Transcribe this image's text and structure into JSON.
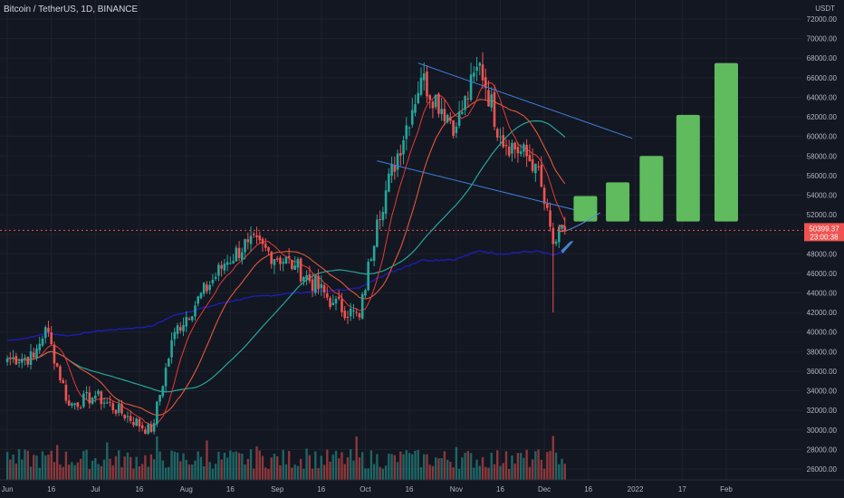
{
  "header": {
    "symbol_info": "Bitcoin / TetherUS, 1D, BINANCE"
  },
  "price_badge": {
    "price": "50399.37",
    "countdown": "23:00:38"
  },
  "chart_data": {
    "type": "candlestick",
    "title": "Bitcoin / TetherUS, 1D, BINANCE",
    "currency_label": "USDT",
    "ylim": [
      25000,
      73000
    ],
    "y_ticks": [
      "26000.00",
      "28000.00",
      "30000.00",
      "32000.00",
      "34000.00",
      "36000.00",
      "38000.00",
      "40000.00",
      "42000.00",
      "44000.00",
      "46000.00",
      "48000.00",
      "50000.00",
      "52000.00",
      "54000.00",
      "56000.00",
      "58000.00",
      "60000.00",
      "62000.00",
      "64000.00",
      "66000.00",
      "68000.00",
      "70000.00",
      "72000.00"
    ],
    "x_ticks": [
      "Jun",
      "16",
      "Jul",
      "16",
      "Aug",
      "16",
      "Sep",
      "16",
      "Oct",
      "16",
      "Nov",
      "16",
      "Dec",
      "16",
      "2022",
      "17",
      "Feb"
    ],
    "close_anchors": [
      {
        "date": "Jun 1",
        "close": 37300
      },
      {
        "date": "Jun 10",
        "close": 37400
      },
      {
        "date": "Jun 14",
        "close": 40500
      },
      {
        "date": "Jun 22",
        "close": 32500
      },
      {
        "date": "Jul 1",
        "close": 33500
      },
      {
        "date": "Jul 20",
        "close": 29800
      },
      {
        "date": "Jul 28",
        "close": 40000
      },
      {
        "date": "Aug 14",
        "close": 47000
      },
      {
        "date": "Aug 22",
        "close": 49200
      },
      {
        "date": "Sep 7",
        "close": 46800
      },
      {
        "date": "Sep 20",
        "close": 43000
      },
      {
        "date": "Sep 29",
        "close": 41500
      },
      {
        "date": "Oct 5",
        "close": 51500
      },
      {
        "date": "Oct 20",
        "close": 66000
      },
      {
        "date": "Nov 1",
        "close": 61000
      },
      {
        "date": "Nov 9",
        "close": 67500
      },
      {
        "date": "Nov 16",
        "close": 60000
      },
      {
        "date": "Nov 28",
        "close": 57200
      },
      {
        "date": "Dec 4",
        "close": 49000
      },
      {
        "date": "Dec 8",
        "close": 50400
      }
    ],
    "wick_low_extreme": {
      "date": "Dec 4",
      "low": 42000
    },
    "projection_bars": [
      {
        "low": 51300,
        "high": 53900
      },
      {
        "low": 51300,
        "high": 55300
      },
      {
        "low": 51300,
        "high": 58000
      },
      {
        "low": 51300,
        "high": 62200
      },
      {
        "low": 51300,
        "high": 67500
      }
    ],
    "last_price": 50399.37,
    "colors": {
      "bull": "#26a69a",
      "bear": "#ef5350",
      "projection": "#5fbb5e",
      "ma_fast": "#e53935",
      "ma_mid": "#e0583a",
      "ma_slow": "#26a69a",
      "ma_long": "#1e1eb0",
      "trendline": "#3f7fd8"
    }
  }
}
